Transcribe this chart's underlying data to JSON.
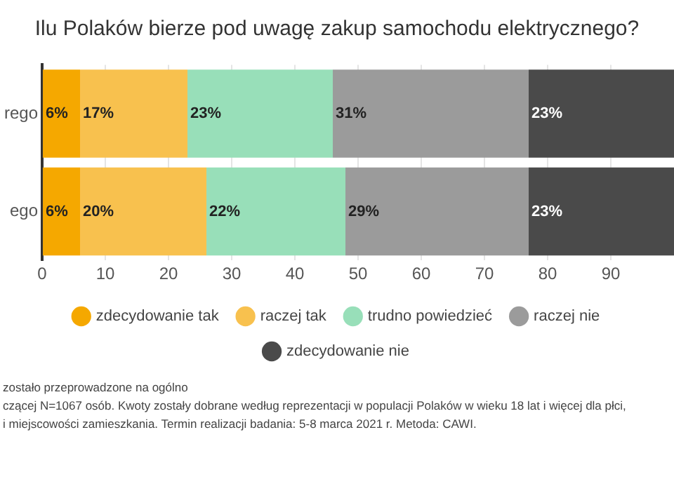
{
  "chart_data": {
    "type": "bar",
    "orientation": "horizontal",
    "stacked": true,
    "title": "Ilu Polaków bierze pod uwagę zakup samochodu elektrycznego?",
    "categories": [
      "rego",
      "ego"
    ],
    "series": [
      {
        "name": "zdecydowanie tak",
        "color": "#f5a800",
        "values": [
          6,
          6
        ],
        "value_labels": [
          "6%",
          "6%"
        ]
      },
      {
        "name": "raczej tak",
        "color": "#f8c14e",
        "values": [
          17,
          20
        ],
        "value_labels": [
          "17%",
          "20%"
        ]
      },
      {
        "name": "trudno powiedzieć",
        "color": "#98dfb9",
        "values": [
          23,
          22
        ],
        "value_labels": [
          "23%",
          "22%"
        ]
      },
      {
        "name": "raczej nie",
        "color": "#9b9b9b",
        "values": [
          31,
          29
        ],
        "value_labels": [
          "31%",
          "29%"
        ]
      },
      {
        "name": "zdecydowanie nie",
        "color": "#4a4a4a",
        "values": [
          23,
          23
        ],
        "value_labels": [
          "23%",
          "23%"
        ]
      }
    ],
    "xlim": [
      0,
      100
    ],
    "xticks": [
      0,
      10,
      20,
      30,
      40,
      50,
      60,
      70,
      80,
      90
    ],
    "grid": "x",
    "legend": "bottom",
    "annotations": [
      "zostało przeprowadzone na ogólno",
      "czącej N=1067 osób. Kwoty zostały dobrane według reprezentacji w populacji Polaków w wieku 18 lat i więcej dla płci,",
      "i miejscowości zamieszkania. Termin realizacji badania:  5-8 marca 2021 r. Metoda: CAWI."
    ]
  }
}
